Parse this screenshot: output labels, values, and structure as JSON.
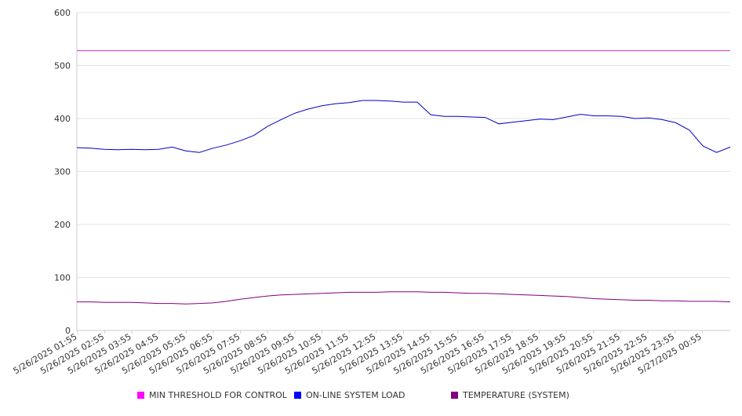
{
  "chart_data": {
    "type": "line",
    "title": "",
    "xlabel": "",
    "ylabel": "",
    "ylim": [
      0,
      600
    ],
    "yticks": [
      0,
      100,
      200,
      300,
      400,
      500,
      600
    ],
    "grid": "horizontal",
    "legend_position": "bottom",
    "x_tick_labels": [
      "5/26/2025 01:55",
      "5/26/2025 02:55",
      "5/26/2025 03:55",
      "5/26/2025 04:55",
      "5/26/2025 05:55",
      "5/26/2025 06:55",
      "5/26/2025 07:55",
      "5/26/2025 08:55",
      "5/26/2025 09:55",
      "5/26/2025 10:55",
      "5/26/2025 11:55",
      "5/26/2025 12:55",
      "5/26/2025 13:55",
      "5/26/2025 14:55",
      "5/26/2025 15:55",
      "5/26/2025 16:55",
      "5/26/2025 17:55",
      "5/26/2025 18:55",
      "5/26/2025 19:55",
      "5/26/2025 20:55",
      "5/26/2025 21:55",
      "5/26/2025 22:55",
      "5/26/2025 23:55",
      "5/27/2025 00:55"
    ],
    "x_hours": [
      0,
      0.5,
      1,
      1.5,
      2,
      2.5,
      3,
      3.5,
      4,
      4.5,
      5,
      5.5,
      6,
      6.5,
      7,
      7.5,
      8,
      8.5,
      9,
      9.5,
      10,
      10.5,
      11,
      11.5,
      12,
      12.5,
      13,
      13.5,
      14,
      14.5,
      15,
      15.5,
      16,
      16.5,
      17,
      17.5,
      18,
      18.5,
      19,
      19.5,
      20,
      20.5,
      21,
      21.5,
      22,
      22.5,
      23,
      23.5,
      24
    ],
    "series": [
      {
        "name": "MIN THRESHOLD FOR CONTROL",
        "color": "#cc33cc",
        "values": [
          528,
          528,
          528,
          528,
          528,
          528,
          528,
          528,
          528,
          528,
          528,
          528,
          528,
          528,
          528,
          528,
          528,
          528,
          528,
          528,
          528,
          528,
          528,
          528,
          528,
          528,
          528,
          528,
          528,
          528,
          528,
          528,
          528,
          528,
          528,
          528,
          528,
          528,
          528,
          528,
          528,
          528,
          528,
          528,
          528,
          528,
          528,
          528,
          528
        ]
      },
      {
        "name": "ON-LINE SYSTEM LOAD",
        "color": "#0000cc",
        "values": [
          345,
          344,
          342,
          341,
          342,
          341,
          342,
          346,
          339,
          336,
          344,
          350,
          358,
          368,
          385,
          398,
          410,
          418,
          424,
          428,
          430,
          434,
          434,
          433,
          431,
          431,
          407,
          404,
          404,
          403,
          402,
          390,
          393,
          396,
          399,
          398,
          403,
          408,
          405,
          405,
          404,
          400,
          401,
          398,
          392,
          378,
          348,
          336,
          346
        ]
      },
      {
        "name": "TEMPERATURE (SYSTEM)",
        "color": "#800080",
        "values": [
          54,
          54,
          53,
          53,
          53,
          52,
          51,
          51,
          50,
          51,
          52,
          55,
          59,
          62,
          65,
          67,
          68,
          69,
          70,
          71,
          72,
          72,
          72,
          73,
          73,
          73,
          72,
          72,
          71,
          70,
          70,
          69,
          68,
          67,
          66,
          65,
          64,
          62,
          60,
          59,
          58,
          57,
          57,
          56,
          56,
          55,
          55,
          55,
          54
        ]
      }
    ]
  }
}
